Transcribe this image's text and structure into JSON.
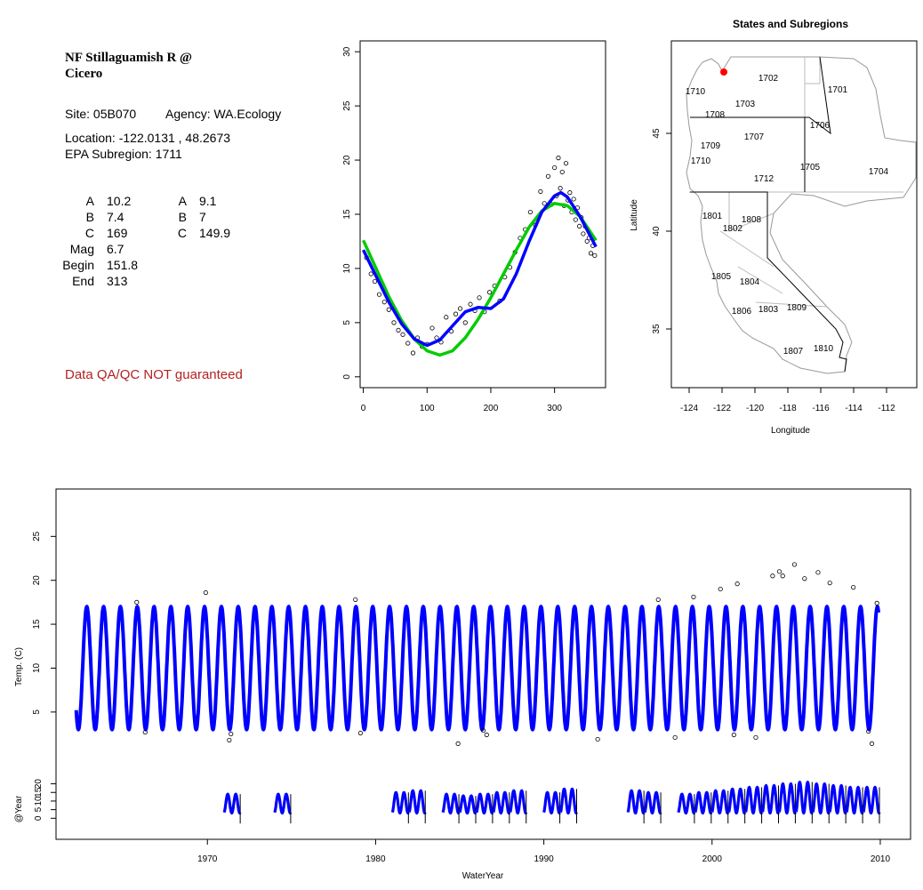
{
  "info": {
    "title_line1": "NF Stillaguamish R @",
    "title_line2": "Cicero",
    "site": "Site: 05B070",
    "agency": "Agency: WA.Ecology",
    "location": "Location: -122.0131 , 48.2673",
    "subregion": "EPA Subregion: 1711",
    "coef_left": [
      {
        "label": "A",
        "value": "10.2"
      },
      {
        "label": "B",
        "value": "7.4"
      },
      {
        "label": "C",
        "value": "169"
      },
      {
        "label": "Mag",
        "value": "6.7"
      },
      {
        "label": "Begin",
        "value": "151.8"
      },
      {
        "label": "End",
        "value": "313"
      }
    ],
    "coef_right": [
      {
        "label": "A",
        "value": "9.1"
      },
      {
        "label": "B",
        "value": "7"
      },
      {
        "label": "C",
        "value": "149.9"
      }
    ],
    "qa_note": "Data QA/QC NOT guaranteed",
    "qa_color": "#b22222"
  },
  "map": {
    "title": "States and Subregions",
    "xlabel": "Longitude",
    "ylabel": "Latitude",
    "xticks": [
      "-124",
      "-122",
      "-120",
      "-118",
      "-116",
      "-114",
      "-112"
    ],
    "yticks": [
      "35",
      "40",
      "45"
    ],
    "regions": [
      "1702",
      "1701",
      "1710",
      "1703",
      "1708",
      "1706",
      "1707",
      "1709",
      "1710",
      "1705",
      "1704",
      "1712",
      "1801",
      "1808",
      "1802",
      "1805",
      "1804",
      "1806",
      "1803",
      "1809",
      "1807",
      "1810"
    ],
    "site_marker_color": "#ff0000"
  },
  "chart_data": [
    {
      "type": "scatter",
      "id": "day-of-year-plot",
      "title": "",
      "xlabel": "",
      "ylabel": "",
      "xlim": [
        -5,
        380
      ],
      "ylim": [
        -1,
        31
      ],
      "xticks": [
        0,
        100,
        200,
        300
      ],
      "yticks": [
        0,
        5,
        10,
        15,
        20,
        25,
        30
      ],
      "series": [
        {
          "kind": "fit-curve",
          "color": "#0000ff",
          "x": [
            0,
            20,
            40,
            60,
            80,
            100,
            120,
            140,
            160,
            180,
            200,
            220,
            240,
            260,
            280,
            300,
            310,
            320,
            340,
            365
          ],
          "y": [
            11.7,
            9.3,
            6.9,
            4.9,
            3.5,
            2.9,
            3.4,
            4.7,
            6.0,
            6.4,
            6.3,
            7.2,
            9.5,
            12.5,
            15.2,
            16.7,
            17.0,
            16.6,
            14.8,
            12.0
          ]
        },
        {
          "kind": "fit-curve",
          "color": "#00cc00",
          "x": [
            0,
            20,
            40,
            60,
            80,
            100,
            120,
            140,
            160,
            180,
            200,
            220,
            240,
            260,
            280,
            300,
            320,
            340,
            365
          ],
          "y": [
            12.6,
            10.0,
            7.4,
            5.2,
            3.5,
            2.4,
            2.0,
            2.4,
            3.6,
            5.3,
            7.3,
            9.5,
            11.7,
            13.8,
            15.3,
            16.0,
            15.8,
            14.8,
            12.6
          ]
        },
        {
          "kind": "observations",
          "color": "#000000",
          "x": [
            5,
            12,
            18,
            25,
            33,
            40,
            48,
            55,
            62,
            70,
            78,
            85,
            92,
            100,
            108,
            115,
            122,
            130,
            138,
            145,
            152,
            160,
            168,
            175,
            182,
            190,
            198,
            206,
            214,
            222,
            230,
            238,
            246,
            254,
            262,
            270,
            278,
            284,
            290,
            295,
            300,
            303,
            306,
            309,
            312,
            315,
            318,
            321,
            324,
            327,
            330,
            333,
            336,
            339,
            342,
            345,
            348,
            351,
            354,
            357,
            360,
            363
          ],
          "y": [
            11.0,
            9.5,
            8.8,
            7.6,
            6.9,
            6.2,
            5.0,
            4.3,
            3.9,
            3.1,
            2.2,
            3.6,
            2.8,
            3.0,
            4.5,
            3.6,
            3.2,
            5.5,
            4.2,
            5.8,
            6.3,
            5.0,
            6.7,
            6.1,
            7.3,
            6.0,
            7.8,
            8.4,
            7.0,
            9.2,
            10.1,
            11.5,
            12.8,
            13.6,
            15.2,
            14.0,
            17.1,
            16.0,
            18.5,
            15.9,
            19.3,
            16.7,
            20.2,
            17.4,
            18.9,
            15.8,
            19.7,
            16.3,
            17.0,
            15.2,
            16.4,
            14.5,
            15.6,
            13.9,
            14.7,
            13.2,
            13.9,
            12.5,
            12.8,
            11.4,
            12.1,
            11.2
          ]
        }
      ]
    },
    {
      "type": "line",
      "id": "time-series-plot",
      "title": "",
      "xlabel": "WaterYear",
      "ylabel": "Temp. (C)",
      "xlim": [
        1961,
        2011.8
      ],
      "ylim": [
        -1.7,
        30.4
      ],
      "xticks": [
        1970,
        1980,
        1990,
        2000,
        2010
      ],
      "yticks": [
        5,
        10,
        15,
        20,
        25
      ],
      "series": [
        {
          "kind": "seasonal-model",
          "color": "#0000ff",
          "year_start": 1962.2,
          "year_end": 2009.9,
          "min": 3.0,
          "max": 17.0
        },
        {
          "kind": "outlier-points",
          "color": "#000000",
          "x": [
            1965.8,
            1966.3,
            1969.9,
            1971.3,
            1971.4,
            1978.8,
            1979.1,
            1984.9,
            1986.4,
            1986.6,
            1993.2,
            1996.8,
            1997.8,
            1998.9,
            2000.5,
            2001.3,
            2001.5,
            2002.6,
            2003.6,
            2004.0,
            2004.2,
            2004.9,
            2005.5,
            2006.3,
            2007.0,
            2008.4,
            2009.3,
            2009.5,
            2009.8
          ],
          "y": [
            17.5,
            2.7,
            18.6,
            1.8,
            2.5,
            17.8,
            2.6,
            1.4,
            2.9,
            2.4,
            1.9,
            17.8,
            2.1,
            18.1,
            19.0,
            2.4,
            19.6,
            2.1,
            20.5,
            21.0,
            20.5,
            21.8,
            20.2,
            20.9,
            19.7,
            19.2,
            2.8,
            1.4,
            17.4
          ]
        }
      ]
    },
    {
      "type": "line",
      "id": "year-strip-plot",
      "title": "",
      "xlabel": "",
      "ylabel": "@Year",
      "xlim": [
        1961,
        2011.8
      ],
      "ylim": [
        -5,
        27
      ],
      "yticks": [
        0,
        5,
        10,
        15,
        20
      ],
      "series": [
        {
          "kind": "yearly-segments",
          "color": "#0000ff",
          "years": [
            1971,
            1974,
            1981,
            1982,
            1984,
            1985,
            1986,
            1987,
            1988,
            1990,
            1991,
            1995,
            1996,
            1998,
            1999,
            2000,
            2001,
            2002,
            2003,
            2004,
            2005,
            2006,
            2007,
            2008,
            2009
          ],
          "amplitudes": [
            14,
            14,
            15,
            16,
            14,
            13,
            14,
            15,
            16,
            15,
            17,
            16,
            15,
            14,
            15,
            16,
            17,
            18,
            19,
            20,
            21,
            20,
            19,
            18,
            18
          ]
        }
      ]
    }
  ]
}
